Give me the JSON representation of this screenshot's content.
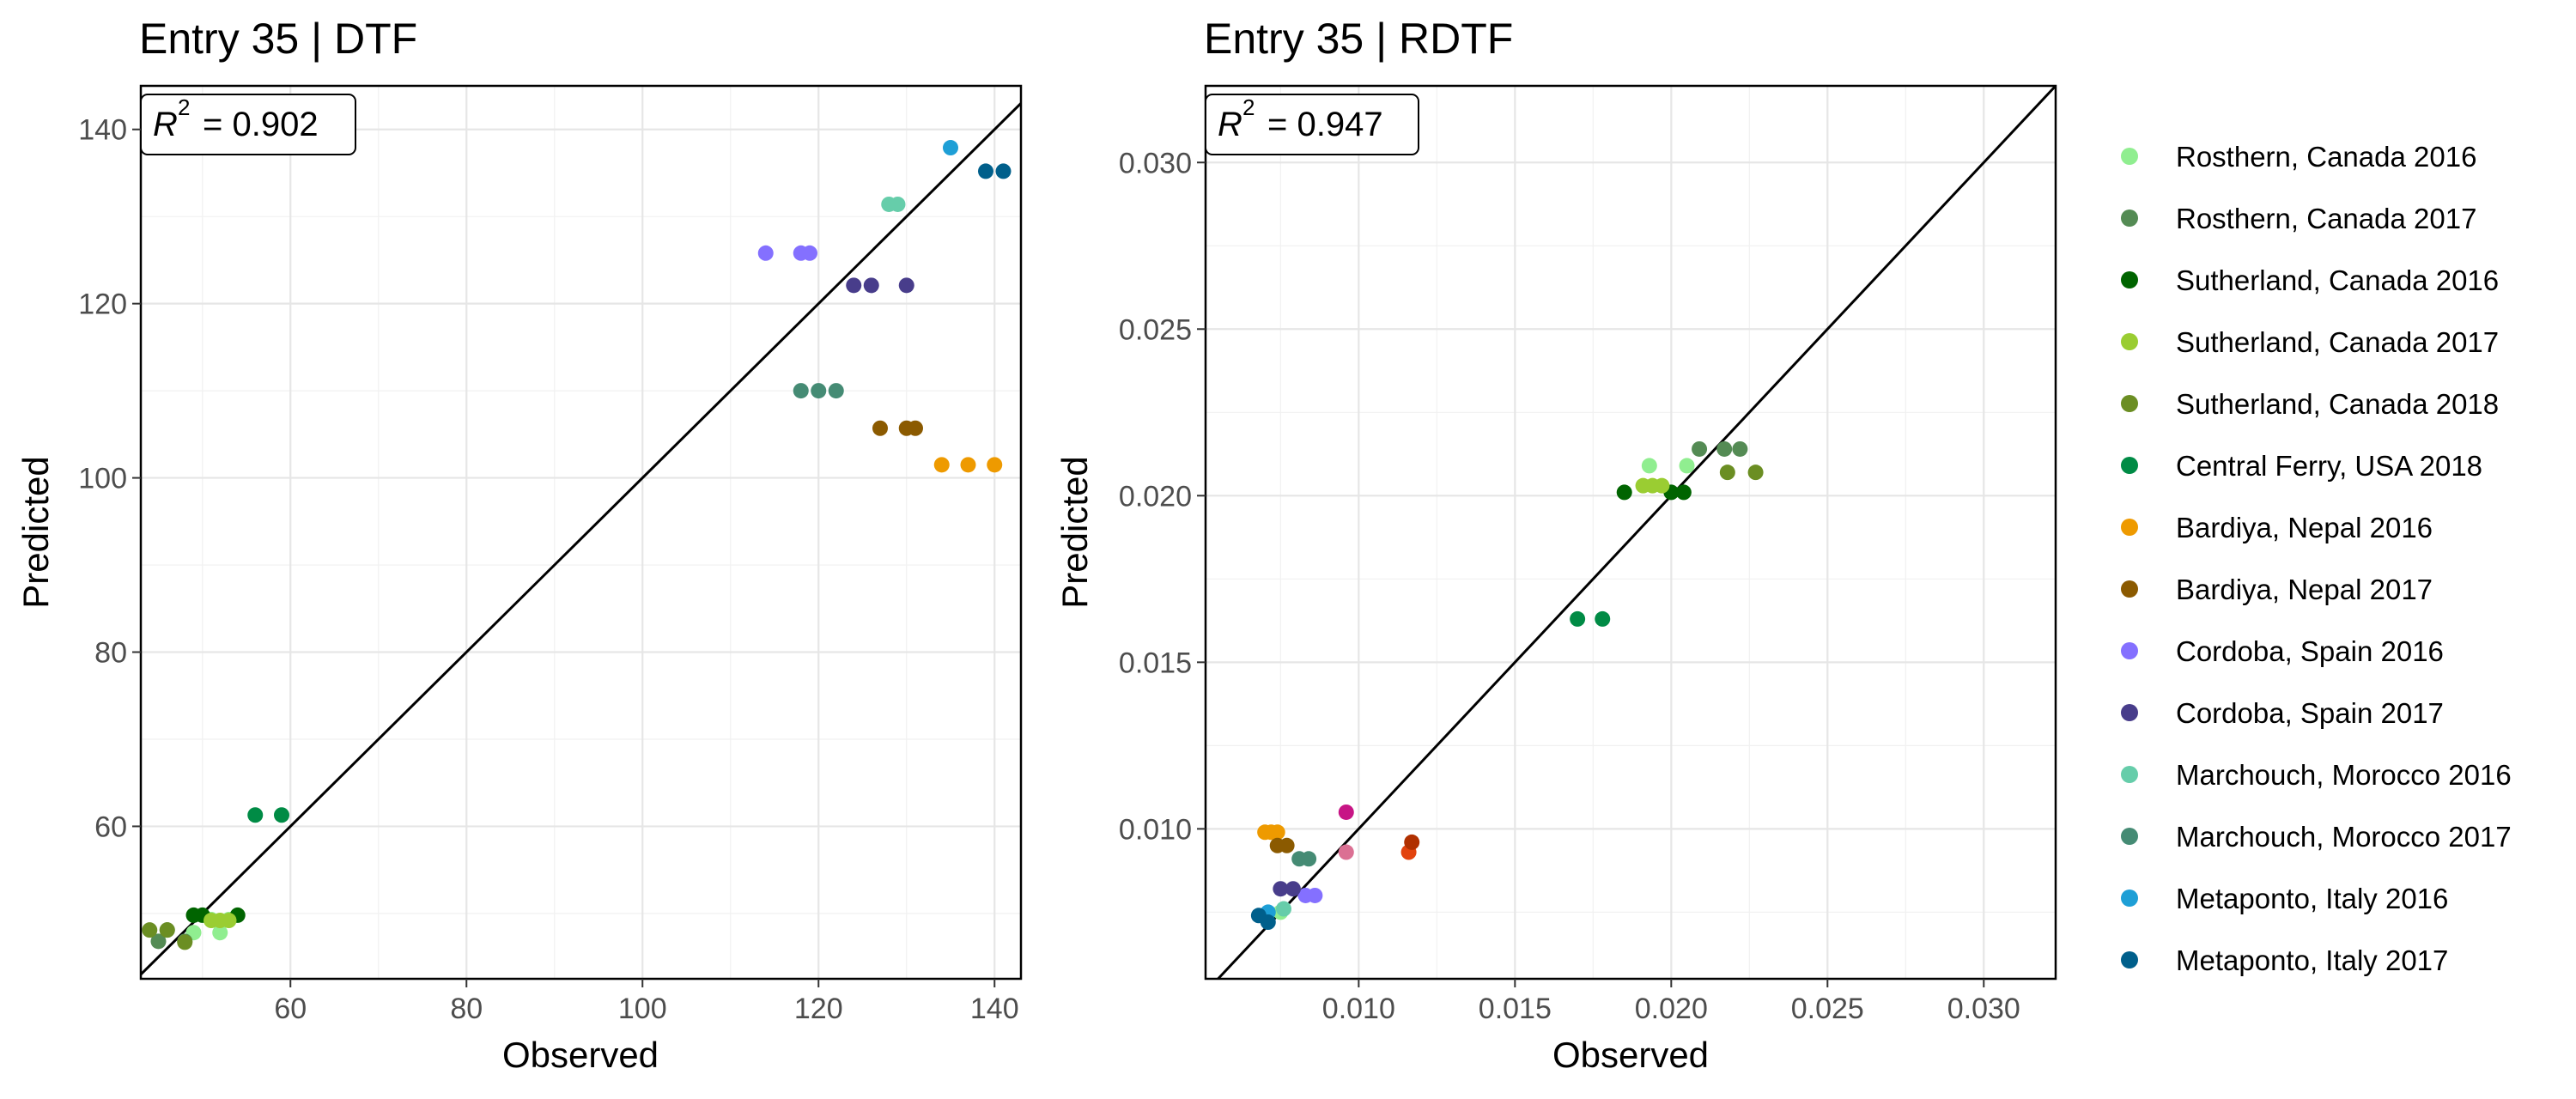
{
  "colors": {
    "Rosthern, Canada 2016": "#90ee90",
    "Rosthern, Canada 2017": "#548b54",
    "Sutherland, Canada 2016": "#006400",
    "Sutherland, Canada 2017": "#9acd32",
    "Sutherland, Canada 2018": "#6b8e23",
    "Central Ferry, USA 2018": "#008b45",
    "Bardiya, Nepal 2016": "#ee9a00",
    "Bardiya, Nepal 2017": "#8b5a00",
    "Cordoba, Spain 2016": "#8470ff",
    "Cordoba, Spain 2017": "#483d8b",
    "Marchouch, Morocco 2016": "#66cdaa",
    "Marchouch, Morocco 2017": "#458b74",
    "Metaponto, Italy 2016": "#1e9fd6",
    "Metaponto, Italy 2017": "#005f8b",
    "extra_magenta": "#c71585",
    "extra_pink": "#db7093",
    "extra_orangered": "#e2430e",
    "extra_darkred": "#b03000",
    "extra_cyan": "#3ec9d6"
  },
  "chart_data": [
    {
      "type": "scatter",
      "title": "Entry 35 | DTF",
      "xlabel": "Observed",
      "ylabel": "Predicted",
      "annotation": {
        "r2_label": "R",
        "r2_sup": "2",
        "r2_value": "= 0.902"
      },
      "xlim": [
        43,
        143
      ],
      "ylim": [
        42.5,
        145
      ],
      "xticks": [
        60,
        80,
        100,
        120,
        140
      ],
      "yticks": [
        60,
        80,
        100,
        120,
        140
      ],
      "xtick_labels": [
        "60",
        "80",
        "100",
        "120",
        "140"
      ],
      "ytick_labels": [
        "60",
        "80",
        "100",
        "120",
        "140"
      ],
      "reference_line": "y = x",
      "series": [
        {
          "name": "Rosthern, Canada 2016",
          "points": [
            [
              49,
              47.8
            ],
            [
              52,
              47.8
            ],
            [
              51,
              49.3
            ],
            [
              53,
              49.3
            ]
          ]
        },
        {
          "name": "Rosthern, Canada 2017",
          "points": [
            [
              45,
              46.8
            ],
            [
              48,
              46.8
            ],
            [
              46,
              48.1
            ]
          ]
        },
        {
          "name": "Sutherland, Canada 2016",
          "points": [
            [
              49,
              49.8
            ],
            [
              50,
              49.8
            ],
            [
              54,
              49.8
            ]
          ]
        },
        {
          "name": "Sutherland, Canada 2017",
          "points": [
            [
              51,
              49.2
            ],
            [
              52,
              49.2
            ],
            [
              53,
              49.2
            ]
          ]
        },
        {
          "name": "Sutherland, Canada 2018",
          "points": [
            [
              44,
              48.1
            ],
            [
              46,
              48.1
            ],
            [
              48,
              46.7
            ]
          ]
        },
        {
          "name": "Central Ferry, USA 2018",
          "points": [
            [
              56,
              61.3
            ],
            [
              59,
              61.3
            ]
          ]
        },
        {
          "name": "Bardiya, Nepal 2016",
          "points": [
            [
              134,
              101.5
            ],
            [
              137,
              101.5
            ],
            [
              140,
              101.5
            ]
          ]
        },
        {
          "name": "Bardiya, Nepal 2017",
          "points": [
            [
              127,
              105.7
            ],
            [
              130,
              105.7
            ],
            [
              131,
              105.7
            ]
          ]
        },
        {
          "name": "Cordoba, Spain 2016",
          "points": [
            [
              114,
              125.8
            ],
            [
              118,
              125.8
            ],
            [
              119,
              125.8
            ]
          ]
        },
        {
          "name": "Cordoba, Spain 2017",
          "points": [
            [
              124,
              122.1
            ],
            [
              126,
              122.1
            ],
            [
              130,
              122.1
            ]
          ]
        },
        {
          "name": "Marchouch, Morocco 2016",
          "points": [
            [
              128,
              131.4
            ],
            [
              129,
              131.4
            ]
          ]
        },
        {
          "name": "Marchouch, Morocco 2017",
          "points": [
            [
              118,
              110
            ],
            [
              120,
              110
            ],
            [
              122,
              110
            ]
          ]
        },
        {
          "name": "Metaponto, Italy 2016",
          "points": [
            [
              135,
              137.9
            ]
          ]
        },
        {
          "name": "Metaponto, Italy 2017",
          "points": [
            [
              139,
              135.2
            ],
            [
              141,
              135.2
            ]
          ]
        }
      ]
    },
    {
      "type": "scatter",
      "title": "Entry 35 | RDTF",
      "xlabel": "Observed",
      "ylabel": "Predicted",
      "annotation": {
        "r2_label": "R",
        "r2_sup": "2",
        "r2_value": "= 0.947"
      },
      "xlim": [
        0.0051,
        0.0323
      ],
      "ylim": [
        0.0055,
        0.0323
      ],
      "xticks": [
        0.01,
        0.015,
        0.02,
        0.025,
        0.03
      ],
      "yticks": [
        0.01,
        0.015,
        0.02,
        0.025,
        0.03
      ],
      "xtick_labels": [
        "0.010",
        "0.015",
        "0.020",
        "0.025",
        "0.030"
      ],
      "ytick_labels": [
        "0.010",
        "0.015",
        "0.020",
        "0.025",
        "0.030"
      ],
      "reference_line": "y = x",
      "series": [
        {
          "name": "Rosthern, Canada 2016",
          "points": [
            [
              0.0193,
              0.0209
            ],
            [
              0.0205,
              0.0209
            ],
            [
              0.0075,
              0.0075
            ]
          ]
        },
        {
          "name": "Rosthern, Canada 2017",
          "points": [
            [
              0.0209,
              0.0214
            ],
            [
              0.0217,
              0.0214
            ],
            [
              0.0222,
              0.0214
            ]
          ]
        },
        {
          "name": "Sutherland, Canada 2016",
          "points": [
            [
              0.0185,
              0.0201
            ],
            [
              0.02,
              0.0201
            ],
            [
              0.0204,
              0.0201
            ]
          ]
        },
        {
          "name": "Sutherland, Canada 2017",
          "points": [
            [
              0.0191,
              0.0203
            ],
            [
              0.0194,
              0.0203
            ],
            [
              0.0197,
              0.0203
            ]
          ]
        },
        {
          "name": "Sutherland, Canada 2018",
          "points": [
            [
              0.0218,
              0.0207
            ],
            [
              0.0227,
              0.0207
            ]
          ]
        },
        {
          "name": "Central Ferry, USA 2018",
          "points": [
            [
              0.017,
              0.0163
            ],
            [
              0.0178,
              0.0163
            ]
          ]
        },
        {
          "name": "Bardiya, Nepal 2016",
          "points": [
            [
              0.007,
              0.0099
            ],
            [
              0.0072,
              0.0099
            ],
            [
              0.0074,
              0.0099
            ]
          ]
        },
        {
          "name": "Bardiya, Nepal 2017",
          "points": [
            [
              0.0074,
              0.0095
            ],
            [
              0.0077,
              0.0095
            ]
          ]
        },
        {
          "name": "Cordoba, Spain 2016",
          "points": [
            [
              0.0083,
              0.008
            ],
            [
              0.0086,
              0.008
            ]
          ]
        },
        {
          "name": "Cordoba, Spain 2017",
          "points": [
            [
              0.0075,
              0.0082
            ],
            [
              0.0079,
              0.0082
            ]
          ]
        },
        {
          "name": "Marchouch, Morocco 2016",
          "points": [
            [
              0.0076,
              0.0076
            ]
          ]
        },
        {
          "name": "Marchouch, Morocco 2017",
          "points": [
            [
              0.0081,
              0.0091
            ],
            [
              0.0084,
              0.0091
            ]
          ]
        },
        {
          "name": "Metaponto, Italy 2016",
          "points": [
            [
              0.0071,
              0.0075
            ]
          ]
        },
        {
          "name": "Metaponto, Italy 2017",
          "points": [
            [
              0.0068,
              0.0074
            ],
            [
              0.0071,
              0.0072
            ]
          ]
        },
        {
          "name": "",
          "color_key": "extra_magenta",
          "points": [
            [
              0.0096,
              0.0105
            ]
          ]
        },
        {
          "name": "",
          "color_key": "extra_pink",
          "points": [
            [
              0.0096,
              0.0093
            ]
          ]
        },
        {
          "name": "",
          "color_key": "extra_orangered",
          "points": [
            [
              0.0116,
              0.0093
            ]
          ]
        },
        {
          "name": "",
          "color_key": "extra_darkred",
          "points": [
            [
              0.0117,
              0.0096
            ]
          ]
        }
      ]
    }
  ],
  "legend": {
    "placement": "right",
    "entries": [
      "Rosthern, Canada 2016",
      "Rosthern, Canada 2017",
      "Sutherland, Canada 2016",
      "Sutherland, Canada 2017",
      "Sutherland, Canada 2018",
      "Central Ferry, USA 2018",
      "Bardiya, Nepal 2016",
      "Bardiya, Nepal 2017",
      "Cordoba, Spain 2016",
      "Cordoba, Spain 2017",
      "Marchouch, Morocco 2016",
      "Marchouch, Morocco 2017",
      "Metaponto, Italy 2016",
      "Metaponto, Italy 2017"
    ]
  }
}
